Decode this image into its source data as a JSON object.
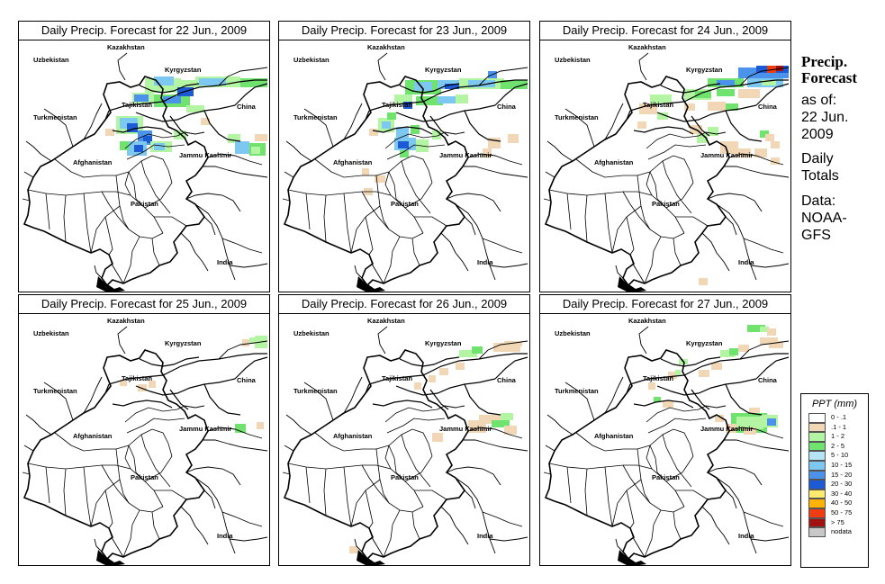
{
  "panels": [
    {
      "title": "Daily Precip. Forecast for  22 Jun., 2009",
      "level": "heavy"
    },
    {
      "title": "Daily Precip. Forecast for  23 Jun., 2009",
      "level": "moderate"
    },
    {
      "title": "Daily Precip. Forecast for  24 Jun., 2009",
      "level": "north"
    },
    {
      "title": "Daily Precip. Forecast for  25 Jun., 2009",
      "level": "dry"
    },
    {
      "title": "Daily Precip. Forecast for  26 Jun., 2009",
      "level": "light"
    },
    {
      "title": "Daily Precip. Forecast for  27 Jun., 2009",
      "level": "east"
    }
  ],
  "map_labels": {
    "kazakhstan": "Kazakhstan",
    "uzbekistan": "Uzbekistan",
    "kyrgyzstan": "Kyrgyzstan",
    "tajikistan": "Tajikistan",
    "china": "China",
    "turkmenistan": "Turkmenistan",
    "jammu_kashmir": "Jammu Kashmir",
    "afghanistan": "Afghanistan",
    "pakistan": "Pakistan",
    "india": "India"
  },
  "sidebar": {
    "heading_line1": "Precip.",
    "heading_line2": "Forecast",
    "as_of_label": "as of:",
    "as_of_date1": "22 Jun.",
    "as_of_date2": "2009",
    "totals1": "Daily",
    "totals2": "Totals",
    "data1": "Data:",
    "data2": "NOAA-",
    "data3": "GFS"
  },
  "legend": {
    "title": "PPT (mm)",
    "items": [
      {
        "label": "0 - .1",
        "color": "#ffffff"
      },
      {
        "label": ".1 - 1",
        "color": "#f2d7b6"
      },
      {
        "label": "1 - 2",
        "color": "#b4f5a4"
      },
      {
        "label": "2 - 5",
        "color": "#6fe36d"
      },
      {
        "label": "5 - 10",
        "color": "#b5e5f5"
      },
      {
        "label": "10 - 15",
        "color": "#7dc8f0"
      },
      {
        "label": "15 - 20",
        "color": "#4a92ea"
      },
      {
        "label": "20 - 30",
        "color": "#1c5ad6"
      },
      {
        "label": "30 - 40",
        "color": "#ffea70"
      },
      {
        "label": "40 - 50",
        "color": "#ffb300"
      },
      {
        "label": "50 - 75",
        "color": "#f03c12"
      },
      {
        "label": "> 75",
        "color": "#a31010"
      },
      {
        "label": "nodata",
        "color": "#c8c8c8"
      }
    ]
  }
}
